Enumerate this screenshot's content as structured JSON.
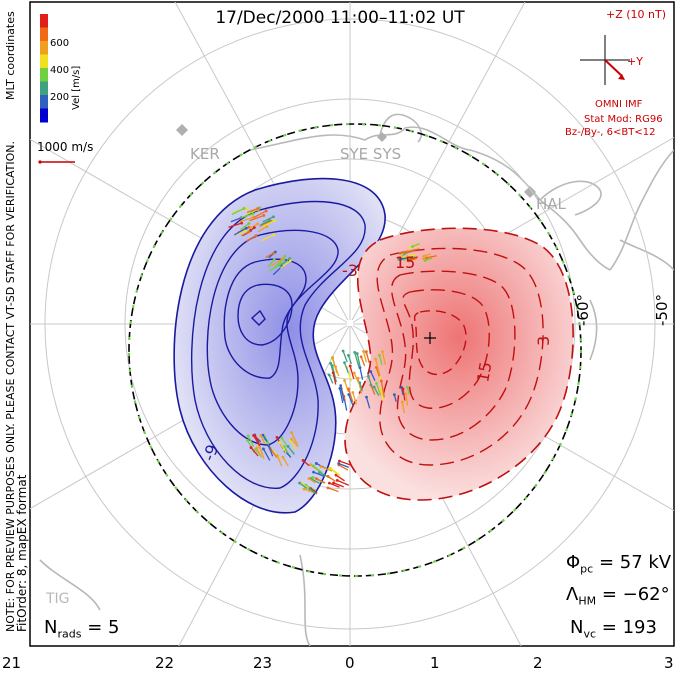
{
  "title": "17/Dec/2000 11:00–11:02 UT",
  "colorbar": {
    "label": "Vel [m/s]",
    "ticks": [
      "600",
      "400",
      "200"
    ],
    "colors": [
      "#e0201a",
      "#f06a18",
      "#f0a020",
      "#f0e020",
      "#70d040",
      "#40a080",
      "#3060c0",
      "#0000d0"
    ]
  },
  "side_text": {
    "coords": "MLT coordinates",
    "note": "NOTE: FOR PREVIEW PURPOSES ONLY. PLEASE CONTACT VT-SD STAFF FOR VERIFICATION.",
    "fit": "FitOrder: 8, mapEX format"
  },
  "vector_scale": "1000 m/s",
  "imf": {
    "scale_label": "+Z (10 nT)",
    "y_label": "+Y",
    "source": "OMNI IMF",
    "model": "Stat Mod: RG96",
    "condition": "Bz-/By-, 6<BT<12"
  },
  "stations": [
    "KER",
    "SYE SYS",
    "HAL",
    "TIG"
  ],
  "lat_labels": [
    "-60°",
    "-50°"
  ],
  "contour_labels": {
    "neg": [
      "-3",
      "-9"
    ],
    "pos": [
      "3",
      "15",
      "15",
      "3"
    ]
  },
  "mlt_labels": [
    "21",
    "22",
    "23",
    "0",
    "1",
    "2",
    "3"
  ],
  "stats": {
    "phi_label": "Φ",
    "phi_sub": "pc",
    "phi_value": "= 57 kV",
    "lambda_label": "Λ",
    "lambda_sub": "HM",
    "lambda_value": "= −62°",
    "nvc_label": "N",
    "nvc_sub": "vc",
    "nvc_value": "= 193",
    "nrads_label": "N",
    "nrads_sub": "rads",
    "nrads_value": "= 5"
  },
  "colors": {
    "negative_cell": "#2a2ac0",
    "positive_cell": "#d02020",
    "grid": "#c8c8c8",
    "coast": "#b0b0b0"
  }
}
